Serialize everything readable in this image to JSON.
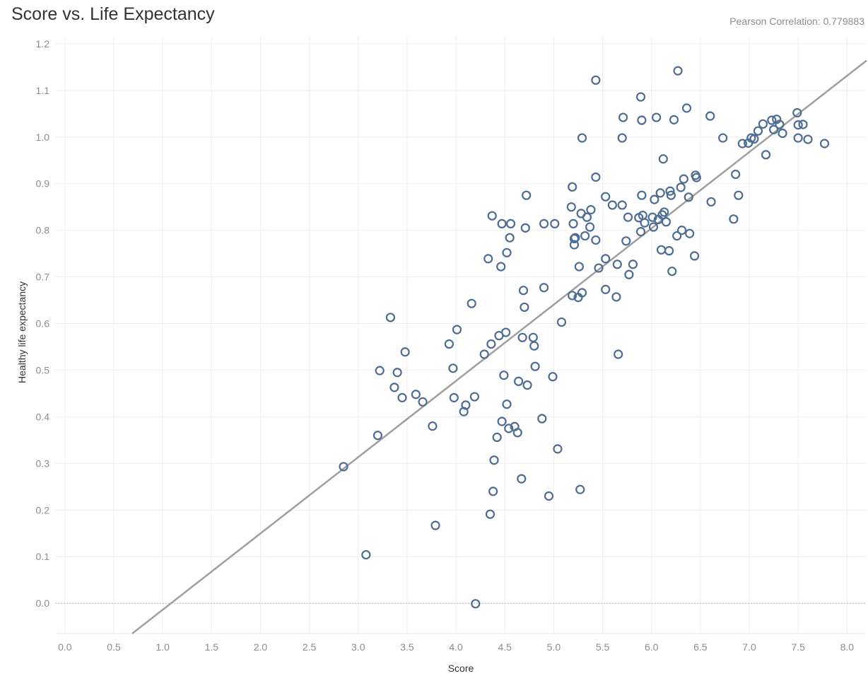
{
  "header": {
    "title": "Score vs. Life Expectancy",
    "correlation_label": "Pearson Correlation:",
    "correlation_value": "0.779883"
  },
  "colors": {
    "marker": "#4e6d95",
    "trend": "#9e9e9e",
    "grid": "#eeeeee",
    "zero_line": "#b5b5b5"
  },
  "chart_data": {
    "type": "scatter",
    "title": "Score vs. Life Expectancy",
    "xlabel": "Score",
    "ylabel": "Healthy life expectancy",
    "xlim": [
      -0.1,
      8.2
    ],
    "ylim": [
      -0.065,
      1.215
    ],
    "x_ticks": [
      "0.0",
      "0.5",
      "1.0",
      "1.5",
      "2.0",
      "2.5",
      "3.0",
      "3.5",
      "4.0",
      "4.5",
      "5.0",
      "5.5",
      "6.0",
      "6.5",
      "7.0",
      "7.5",
      "8.0"
    ],
    "y_ticks": [
      "0.0",
      "0.1",
      "0.2",
      "0.3",
      "0.4",
      "0.5",
      "0.6",
      "0.7",
      "0.8",
      "0.9",
      "1.0",
      "1.1",
      "1.2"
    ],
    "grid": true,
    "marker": "hollow-circle",
    "trend_line": {
      "slope": 0.1636,
      "intercept": -0.1775
    },
    "annotation": "Pearson Correlation: 0.779883",
    "points": [
      [
        2.85,
        0.293
      ],
      [
        3.08,
        0.104
      ],
      [
        3.2,
        0.36
      ],
      [
        3.22,
        0.499
      ],
      [
        3.33,
        0.613
      ],
      [
        3.37,
        0.463
      ],
      [
        3.4,
        0.495
      ],
      [
        3.45,
        0.441
      ],
      [
        3.48,
        0.539
      ],
      [
        3.59,
        0.448
      ],
      [
        3.66,
        0.432
      ],
      [
        3.76,
        0.38
      ],
      [
        3.79,
        0.167
      ],
      [
        3.93,
        0.556
      ],
      [
        3.97,
        0.504
      ],
      [
        3.98,
        0.441
      ],
      [
        4.01,
        0.587
      ],
      [
        4.08,
        0.411
      ],
      [
        4.1,
        0.425
      ],
      [
        4.16,
        0.643
      ],
      [
        4.19,
        0.443
      ],
      [
        4.2,
        -0.001
      ],
      [
        4.29,
        0.534
      ],
      [
        4.33,
        0.739
      ],
      [
        4.35,
        0.191
      ],
      [
        4.36,
        0.556
      ],
      [
        4.37,
        0.831
      ],
      [
        4.38,
        0.24
      ],
      [
        4.39,
        0.307
      ],
      [
        4.42,
        0.356
      ],
      [
        4.44,
        0.574
      ],
      [
        4.46,
        0.722
      ],
      [
        4.47,
        0.39
      ],
      [
        4.47,
        0.814
      ],
      [
        4.49,
        0.489
      ],
      [
        4.51,
        0.581
      ],
      [
        4.52,
        0.752
      ],
      [
        4.52,
        0.427
      ],
      [
        4.54,
        0.375
      ],
      [
        4.55,
        0.784
      ],
      [
        4.56,
        0.814
      ],
      [
        4.6,
        0.379
      ],
      [
        4.63,
        0.366
      ],
      [
        4.64,
        0.476
      ],
      [
        4.67,
        0.267
      ],
      [
        4.68,
        0.57
      ],
      [
        4.69,
        0.671
      ],
      [
        4.7,
        0.635
      ],
      [
        4.71,
        0.805
      ],
      [
        4.72,
        0.875
      ],
      [
        4.73,
        0.468
      ],
      [
        4.79,
        0.57
      ],
      [
        4.8,
        0.552
      ],
      [
        4.81,
        0.508
      ],
      [
        4.88,
        0.396
      ],
      [
        4.9,
        0.677
      ],
      [
        4.9,
        0.814
      ],
      [
        4.95,
        0.23
      ],
      [
        4.99,
        0.486
      ],
      [
        5.01,
        0.814
      ],
      [
        5.04,
        0.331
      ],
      [
        5.08,
        0.603
      ],
      [
        5.18,
        0.85
      ],
      [
        5.19,
        0.66
      ],
      [
        5.19,
        0.893
      ],
      [
        5.2,
        0.814
      ],
      [
        5.21,
        0.769
      ],
      [
        5.21,
        0.782
      ],
      [
        5.22,
        0.784
      ],
      [
        5.25,
        0.656
      ],
      [
        5.26,
        0.722
      ],
      [
        5.27,
        0.244
      ],
      [
        5.28,
        0.836
      ],
      [
        5.29,
        0.666
      ],
      [
        5.29,
        0.998
      ],
      [
        5.32,
        0.788
      ],
      [
        5.34,
        0.828
      ],
      [
        5.37,
        0.807
      ],
      [
        5.38,
        0.844
      ],
      [
        5.43,
        0.914
      ],
      [
        5.43,
        0.779
      ],
      [
        5.43,
        1.122
      ],
      [
        5.46,
        0.719
      ],
      [
        5.53,
        0.739
      ],
      [
        5.53,
        0.872
      ],
      [
        5.53,
        0.673
      ],
      [
        5.6,
        0.854
      ],
      [
        5.64,
        0.657
      ],
      [
        5.65,
        0.727
      ],
      [
        5.66,
        0.534
      ],
      [
        5.7,
        0.854
      ],
      [
        5.7,
        0.998
      ],
      [
        5.71,
        1.042
      ],
      [
        5.74,
        0.777
      ],
      [
        5.76,
        0.828
      ],
      [
        5.77,
        0.705
      ],
      [
        5.81,
        0.727
      ],
      [
        5.87,
        0.827
      ],
      [
        5.89,
        0.797
      ],
      [
        5.89,
        1.086
      ],
      [
        5.9,
        0.875
      ],
      [
        5.9,
        1.036
      ],
      [
        5.91,
        0.832
      ],
      [
        5.93,
        0.816
      ],
      [
        6.01,
        0.828
      ],
      [
        6.02,
        0.807
      ],
      [
        6.03,
        0.866
      ],
      [
        6.05,
        1.042
      ],
      [
        6.07,
        0.823
      ],
      [
        6.09,
        0.88
      ],
      [
        6.1,
        0.758
      ],
      [
        6.11,
        0.833
      ],
      [
        6.12,
        0.953
      ],
      [
        6.13,
        0.839
      ],
      [
        6.15,
        0.818
      ],
      [
        6.18,
        0.756
      ],
      [
        6.19,
        0.884
      ],
      [
        6.2,
        0.875
      ],
      [
        6.21,
        0.712
      ],
      [
        6.23,
        1.037
      ],
      [
        6.26,
        0.788
      ],
      [
        6.27,
        1.142
      ],
      [
        6.3,
        0.892
      ],
      [
        6.31,
        0.8
      ],
      [
        6.33,
        0.91
      ],
      [
        6.36,
        1.062
      ],
      [
        6.38,
        0.871
      ],
      [
        6.39,
        0.793
      ],
      [
        6.44,
        0.745
      ],
      [
        6.45,
        0.918
      ],
      [
        6.46,
        0.913
      ],
      [
        6.6,
        1.045
      ],
      [
        6.61,
        0.861
      ],
      [
        6.73,
        0.998
      ],
      [
        6.84,
        0.824
      ],
      [
        6.86,
        0.92
      ],
      [
        6.89,
        0.875
      ],
      [
        6.93,
        0.986
      ],
      [
        6.99,
        0.987
      ],
      [
        7.02,
        0.998
      ],
      [
        7.05,
        0.996
      ],
      [
        7.09,
        1.013
      ],
      [
        7.14,
        1.028
      ],
      [
        7.17,
        0.962
      ],
      [
        7.23,
        1.036
      ],
      [
        7.25,
        1.016
      ],
      [
        7.28,
        1.038
      ],
      [
        7.31,
        1.027
      ],
      [
        7.34,
        1.008
      ],
      [
        7.49,
        1.052
      ],
      [
        7.5,
        0.998
      ],
      [
        7.5,
        1.026
      ],
      [
        7.55,
        1.027
      ],
      [
        7.6,
        0.995
      ],
      [
        7.77,
        0.986
      ]
    ]
  }
}
